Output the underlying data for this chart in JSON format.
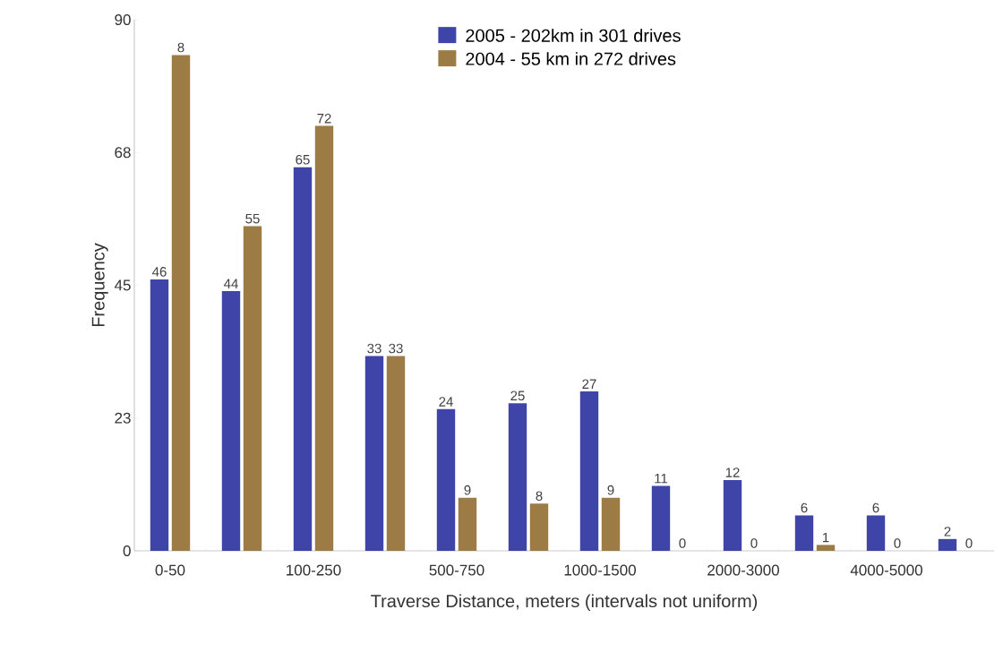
{
  "chart_data": {
    "type": "bar",
    "categories": [
      "0-50",
      null,
      "100-250",
      null,
      "500-750",
      null,
      "1000-1500",
      null,
      "2000-3000",
      null,
      "4000-5000",
      null
    ],
    "series": [
      {
        "name": "2005 - 202km in 301 drives",
        "color": "#3f44a8",
        "values": [
          46,
          44,
          65,
          33,
          24,
          25,
          27,
          11,
          12,
          6,
          6,
          2
        ],
        "value_labels": [
          "46",
          "44",
          "65",
          "33",
          "24",
          "25",
          "27",
          "11",
          "12",
          "6",
          "6",
          "2"
        ]
      },
      {
        "name": "2004 - 55 km in 272 drives",
        "color": "#9c7c44",
        "values": [
          84,
          55,
          72,
          33,
          9,
          8,
          9,
          0,
          0,
          1,
          0,
          0
        ],
        "value_labels": [
          null,
          "55",
          "72",
          "33",
          "9",
          "8",
          "9",
          "0",
          "0",
          "1",
          "0",
          "0"
        ]
      }
    ],
    "xlabel": "Traverse Distance, meters (intervals not uniform)",
    "ylabel": "Frequency",
    "ylim": [
      0,
      90
    ],
    "yticks": [
      0,
      {
        "value": 22.5,
        "label": "23"
      },
      45,
      {
        "value": 67.5,
        "label": "68"
      },
      90
    ],
    "annotations": [
      {
        "text": "8",
        "x": "0-50",
        "y": 84
      }
    ],
    "grid": false,
    "legend": "top"
  }
}
